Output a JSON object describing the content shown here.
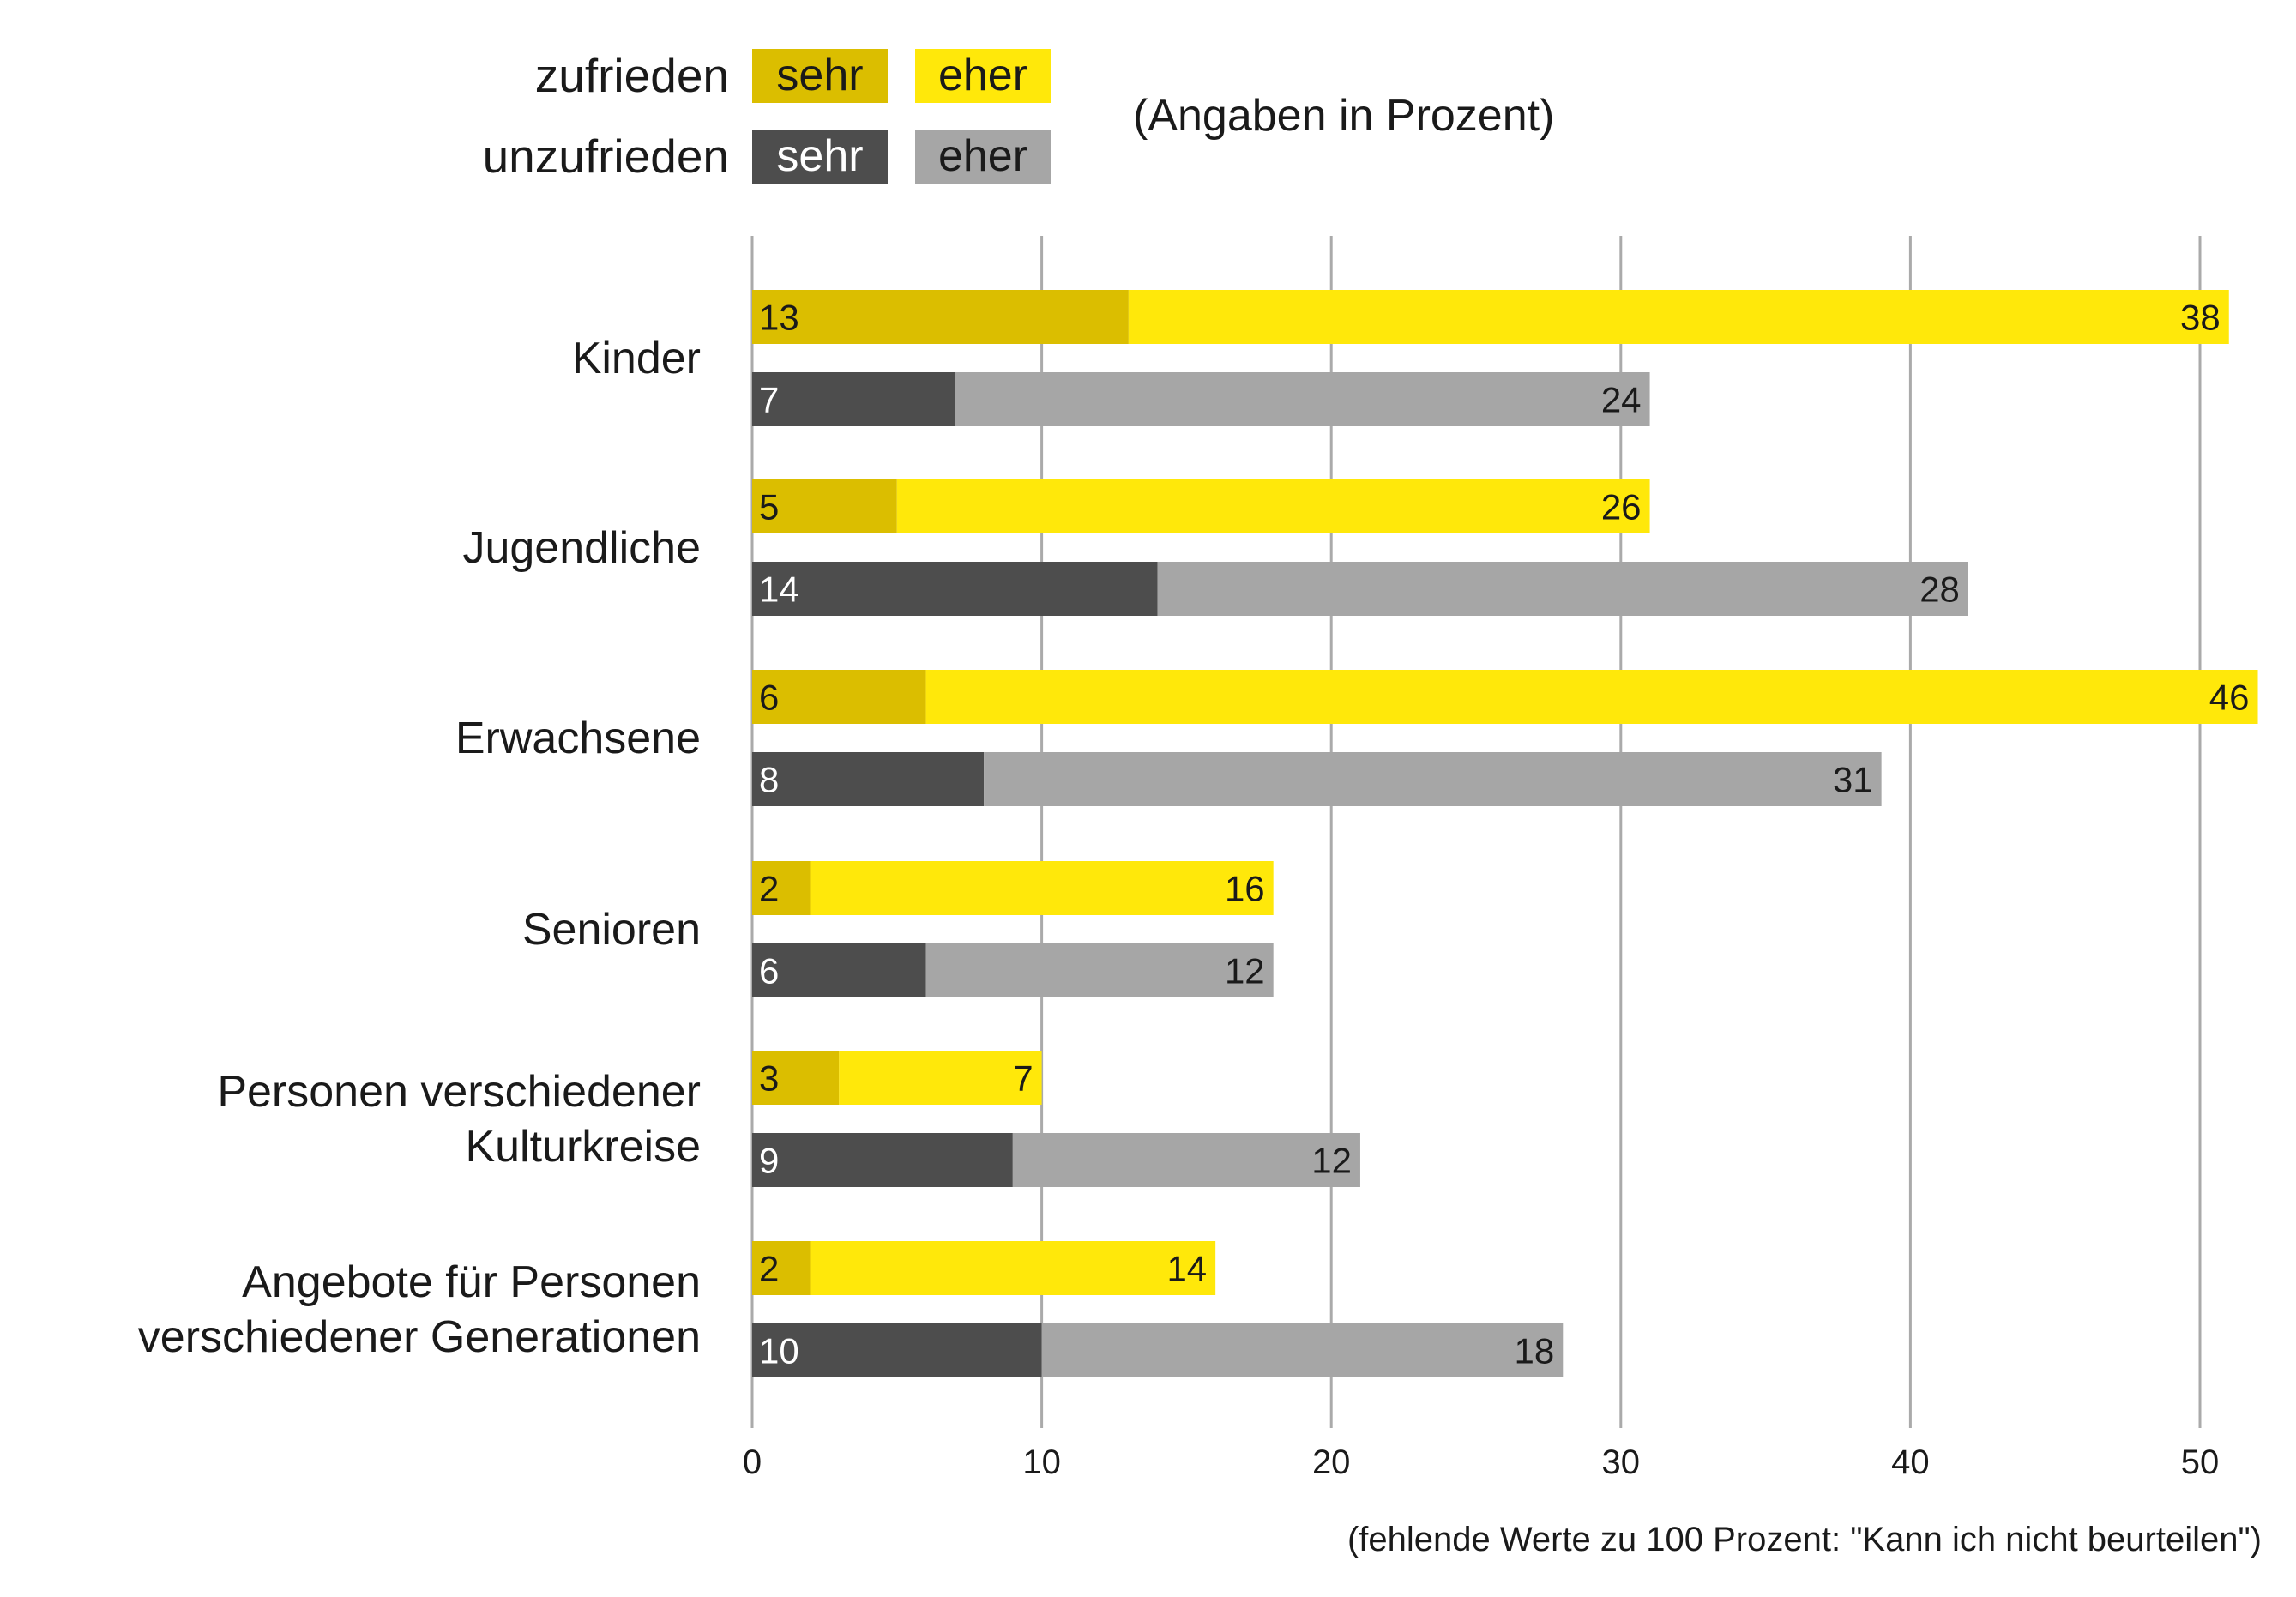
{
  "legend": {
    "rows": [
      {
        "label": "zufrieden",
        "sehr_label": "sehr",
        "eher_label": "eher"
      },
      {
        "label": "unzufrieden",
        "sehr_label": "sehr",
        "eher_label": "eher"
      }
    ],
    "note": "(Angaben in Prozent)"
  },
  "colors": {
    "zufrieden_sehr": "#dbbe00",
    "zufrieden_eher": "#ffe80a",
    "unzufrieden_sehr": "#4d4d4d",
    "unzufrieden_eher": "#a6a6a6",
    "grid": "#aaaaaa",
    "text_dark": "#1a1a1a",
    "text_light": "#ffffff"
  },
  "footnote": "(fehlende Werte zu 100 Prozent: \"Kann ich nicht beurteilen\")",
  "chart_data": {
    "type": "bar",
    "orientation": "horizontal",
    "stacked": true,
    "title": "",
    "subtitle": "(Angaben in Prozent)",
    "xlabel": "",
    "ylabel": "",
    "xlim": [
      0,
      52
    ],
    "xticks": [
      0,
      10,
      20,
      30,
      40,
      50
    ],
    "grid": true,
    "legend_position": "top",
    "categories": [
      "Kinder",
      "Jugendliche",
      "Erwachsene",
      "Senioren",
      "Personen verschiedener Kulturkreise",
      "Angebote für Personen verschiedener Generationen"
    ],
    "category_lines": [
      [
        "Kinder"
      ],
      [
        "Jugendliche"
      ],
      [
        "Erwachsene"
      ],
      [
        "Senioren"
      ],
      [
        "Personen verschiedener",
        "Kulturkreise"
      ],
      [
        "Angebote für Personen",
        "verschiedener Generationen"
      ]
    ],
    "series": [
      {
        "name": "zufrieden sehr",
        "group": "zufrieden",
        "values": [
          13,
          5,
          6,
          2,
          3,
          2
        ]
      },
      {
        "name": "zufrieden eher",
        "group": "zufrieden",
        "values": [
          38,
          26,
          46,
          16,
          7,
          14
        ]
      },
      {
        "name": "unzufrieden sehr",
        "group": "unzufrieden",
        "values": [
          7,
          14,
          8,
          6,
          9,
          10
        ]
      },
      {
        "name": "unzufrieden eher",
        "group": "unzufrieden",
        "values": [
          24,
          28,
          31,
          12,
          12,
          18
        ]
      }
    ],
    "footnote": "(fehlende Werte zu 100 Prozent: \"Kann ich nicht beurteilen\")"
  }
}
